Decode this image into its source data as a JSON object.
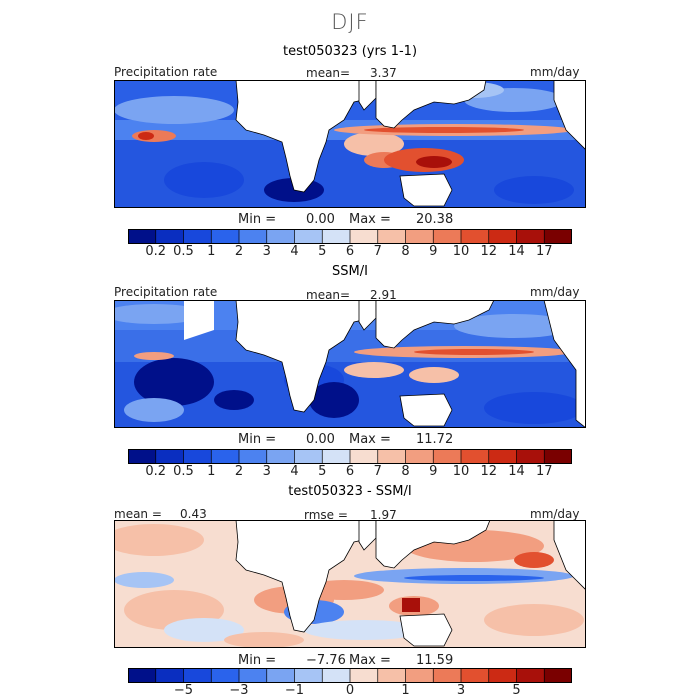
{
  "figure": {
    "season": "DJF"
  },
  "panels": [
    {
      "title": "test050323 (yrs 1-1)",
      "left_label": "Precipitation rate",
      "center_label": "mean=",
      "center_value": "3.37",
      "right_label": "mm/day",
      "min_label": "Min =",
      "min_value": "0.00",
      "max_label": "Max =",
      "max_value": "20.38"
    },
    {
      "title": "SSM/I",
      "left_label": "Precipitation rate",
      "center_label": "mean=",
      "center_value": "2.91",
      "right_label": "mm/day",
      "min_label": "Min =",
      "min_value": "0.00",
      "max_label": "Max =",
      "max_value": "11.72"
    },
    {
      "title": "test050323 - SSM/I",
      "left_label": "mean =",
      "left_value": "0.43",
      "center_label": "rmse =",
      "center_value": "1.97",
      "right_label": "mm/day",
      "min_label": "Min =",
      "min_value": "−7.76",
      "max_label": "Max =",
      "max_value": "11.59"
    }
  ],
  "colorbars": {
    "precip": {
      "ticks": [
        "0.2",
        "0.5",
        "1",
        "2",
        "3",
        "4",
        "5",
        "6",
        "7",
        "8",
        "9",
        "10",
        "12",
        "14",
        "17"
      ],
      "colors": [
        "#00108a",
        "#0a2ec0",
        "#1848dc",
        "#2a63ec",
        "#4c82f0",
        "#7aa4f2",
        "#a6c4f5",
        "#d4e2f7",
        "#f7ddd0",
        "#f6c0a8",
        "#f29e80",
        "#ec7a58",
        "#e2502f",
        "#cc2a14",
        "#a8100a",
        "#7a0000"
      ]
    },
    "diff": {
      "ticks": [
        "−5",
        "−3",
        "−1",
        "0",
        "1",
        "3",
        "5"
      ],
      "colors": [
        "#00108a",
        "#0a2ec0",
        "#1848dc",
        "#2a63ec",
        "#4c82f0",
        "#7aa4f2",
        "#a6c4f5",
        "#d4e2f7",
        "#f7ddd0",
        "#f6c0a8",
        "#f29e80",
        "#ec7a58",
        "#e2502f",
        "#cc2a14",
        "#a8100a",
        "#7a0000"
      ]
    }
  },
  "chart_data": [
    {
      "type": "heatmap",
      "title": "test050323 (yrs 1-1)",
      "variable": "Precipitation rate",
      "units": "mm/day",
      "mean": 3.37,
      "min": 0.0,
      "max": 20.38,
      "color_levels": [
        0.2,
        0.5,
        1,
        2,
        3,
        4,
        5,
        6,
        7,
        8,
        9,
        10,
        12,
        14,
        17
      ]
    },
    {
      "type": "heatmap",
      "title": "SSM/I",
      "variable": "Precipitation rate",
      "units": "mm/day",
      "mean": 2.91,
      "min": 0.0,
      "max": 11.72,
      "color_levels": [
        0.2,
        0.5,
        1,
        2,
        3,
        4,
        5,
        6,
        7,
        8,
        9,
        10,
        12,
        14,
        17
      ]
    },
    {
      "type": "heatmap",
      "title": "test050323 - SSM/I",
      "units": "mm/day",
      "mean": 0.43,
      "rmse": 1.97,
      "min": -7.76,
      "max": 11.59,
      "color_levels": [
        -5,
        -3,
        -1,
        0,
        1,
        3,
        5
      ]
    }
  ]
}
